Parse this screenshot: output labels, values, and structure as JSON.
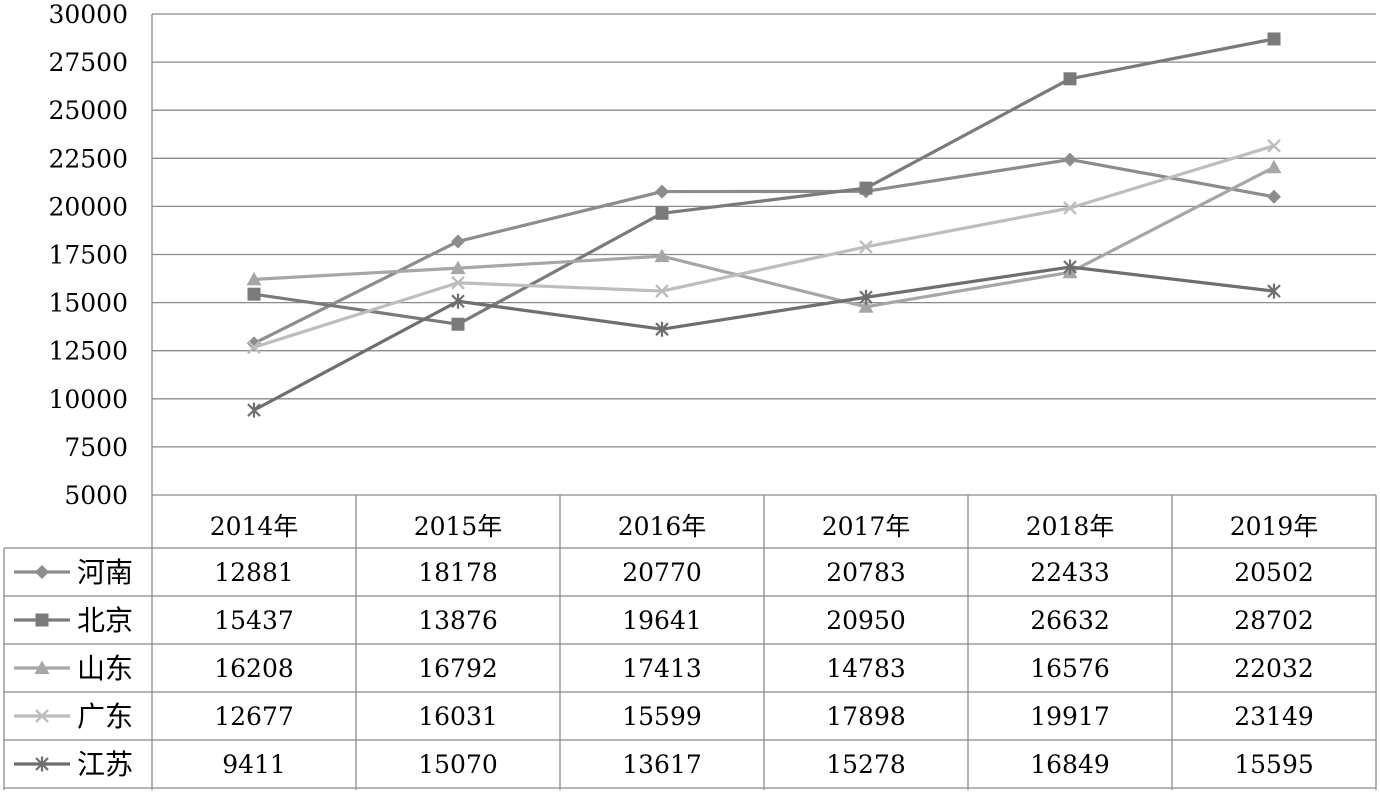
{
  "chart_data": {
    "type": "line",
    "title": "",
    "xlabel": "",
    "ylabel": "",
    "categories": [
      "2014年",
      "2015年",
      "2016年",
      "2017年",
      "2018年",
      "2019年"
    ],
    "ylim": [
      5000,
      30000
    ],
    "yticks": [
      "5000",
      "7500",
      "10000",
      "12500",
      "15000",
      "17500",
      "20000",
      "22500",
      "25000",
      "27500",
      "30000"
    ],
    "grid": true,
    "legend": "data-table-bottom",
    "series": [
      {
        "name": "河南",
        "marker": "diamond",
        "color": "#8c8c8c",
        "values": [
          12881,
          18178,
          20770,
          20783,
          22433,
          20502
        ],
        "labels": [
          "12881",
          "18178",
          "20770",
          "20783",
          "22433",
          "20502"
        ]
      },
      {
        "name": "北京",
        "marker": "square",
        "color": "#7a7a7a",
        "values": [
          15437,
          13876,
          19641,
          20950,
          26632,
          28702
        ],
        "labels": [
          "15437",
          "13876",
          "19641",
          "20950",
          "26632",
          "28702"
        ]
      },
      {
        "name": "山东",
        "marker": "triangle",
        "color": "#a6a6a6",
        "values": [
          16208,
          16792,
          17413,
          14783,
          16576,
          22032
        ],
        "labels": [
          "16208",
          "16792",
          "17413",
          "14783",
          "16576",
          "22032"
        ]
      },
      {
        "name": "广东",
        "marker": "x",
        "color": "#bdbdbd",
        "values": [
          12677,
          16031,
          15599,
          17898,
          19917,
          23149
        ],
        "labels": [
          "12677",
          "16031",
          "15599",
          "17898",
          "19917",
          "23149"
        ]
      },
      {
        "name": "江苏",
        "marker": "star",
        "color": "#6e6e6e",
        "values": [
          9411,
          15070,
          13617,
          15278,
          16849,
          15595
        ],
        "labels": [
          "9411",
          "15070",
          "13617",
          "15278",
          "16849",
          "15595"
        ]
      }
    ]
  }
}
